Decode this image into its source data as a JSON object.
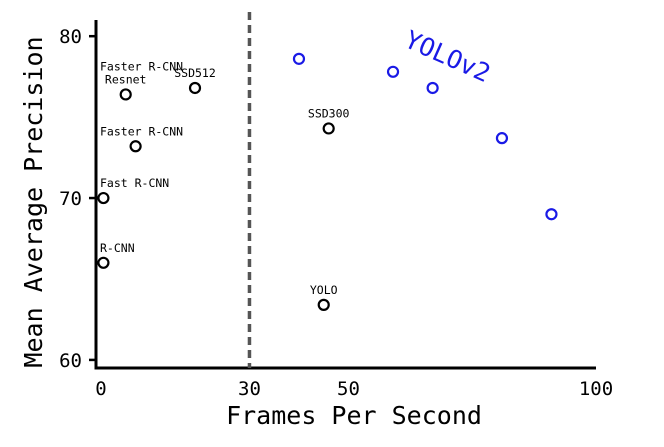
{
  "chart_data": {
    "type": "scatter",
    "title": "",
    "xlabel": "Frames Per Second",
    "ylabel": "Mean Average Precision",
    "xlim": [
      -1,
      100
    ],
    "ylim": [
      59.5,
      81
    ],
    "xticks": [
      {
        "value": 0,
        "label": "0"
      },
      {
        "value": 30,
        "label": "30"
      },
      {
        "value": 50,
        "label": "50"
      },
      {
        "value": 100,
        "label": "100"
      }
    ],
    "yticks": [
      {
        "value": 60,
        "label": "60"
      },
      {
        "value": 70,
        "label": "70"
      },
      {
        "value": 80,
        "label": "80"
      }
    ],
    "reference_line": {
      "x": 30,
      "style": "dashed",
      "color": "#555555"
    },
    "points": [
      {
        "x": 0.5,
        "y": 66.0,
        "label": "R-CNN"
      },
      {
        "x": 0.5,
        "y": 70.0,
        "label": "Fast R-CNN"
      },
      {
        "x": 7,
        "y": 73.2,
        "label": "Faster R-CNN"
      },
      {
        "x": 5,
        "y": 76.4,
        "label": "Faster R-CNN\nResnet"
      },
      {
        "x": 19,
        "y": 76.8,
        "label": "SSD512"
      },
      {
        "x": 46,
        "y": 74.3,
        "label": "SSD300"
      },
      {
        "x": 45,
        "y": 63.4,
        "label": "YOLO"
      }
    ],
    "series": [
      {
        "name": "YOLOv2",
        "color": "#1a1ae6",
        "x": [
          40,
          59,
          67,
          81,
          91
        ],
        "y": [
          78.6,
          77.8,
          76.8,
          73.7,
          69.0
        ]
      }
    ],
    "grid": false,
    "legend": "none"
  }
}
